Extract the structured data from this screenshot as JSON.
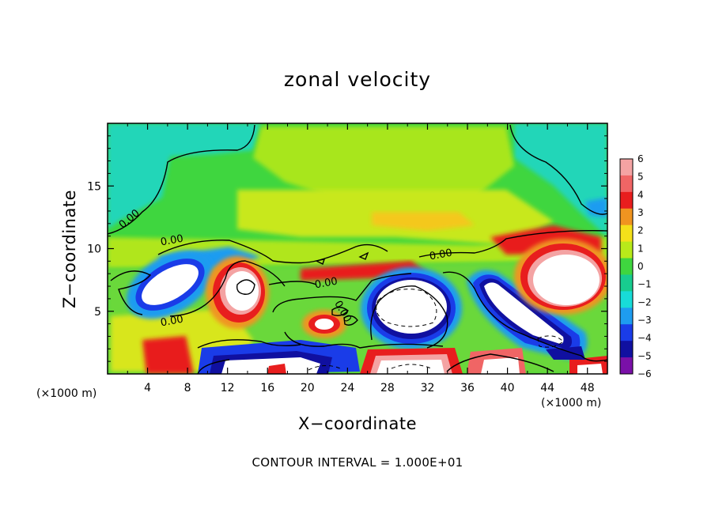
{
  "chart_data": {
    "type": "heatmap",
    "title": "zonal velocity",
    "xlabel": "X−coordinate",
    "ylabel": "Z−coordinate",
    "x_unit": "(×1000 m)",
    "xlim": [
      0,
      50
    ],
    "ylim": [
      0,
      20
    ],
    "x_ticks": [
      4,
      8,
      12,
      16,
      20,
      24,
      28,
      32,
      36,
      40,
      44,
      48
    ],
    "y_ticks": [
      5,
      10,
      15
    ],
    "colorbar": {
      "levels": [
        "6",
        "5",
        "4",
        "3",
        "2",
        "1",
        "0",
        "−1",
        "−2",
        "−3",
        "−4",
        "−5",
        "−6"
      ],
      "colors": [
        "#f4a3a3",
        "#f06565",
        "#e81e1e",
        "#f09420",
        "#f4e01a",
        "#b8ea1a",
        "#3fd63f",
        "#18cc8f",
        "#18dcd8",
        "#1e9cf0",
        "#1a3ce8",
        "#1010a0",
        "#7a10a8"
      ]
    },
    "contour_labels": [
      "0.00",
      "0.00",
      "0.00",
      "0.00",
      "0.00",
      "0.00",
      "0.00",
      "0.00"
    ],
    "contour_interval_text": "CONTOUR INTERVAL = 1.000E+01",
    "grid": false
  }
}
